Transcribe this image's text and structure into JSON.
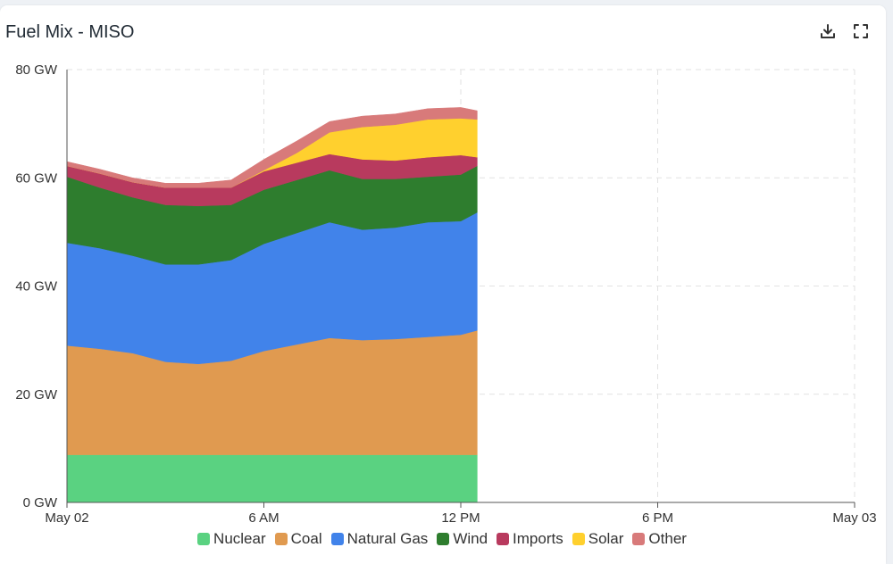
{
  "header": {
    "title": "Fuel Mix - MISO",
    "download_icon": "download-icon",
    "fullscreen_icon": "fullscreen-icon"
  },
  "chart_data": {
    "type": "area",
    "stacked": true,
    "title": "Fuel Mix - MISO",
    "xlabel": "",
    "ylabel": "",
    "x_unit": "hours after May 02 00:00",
    "xlim": [
      0,
      24
    ],
    "ylim": [
      0,
      80
    ],
    "y_ticks": [
      "0 GW",
      "20 GW",
      "40 GW",
      "60 GW",
      "80 GW"
    ],
    "x_ticks": [
      "May 02",
      "6 AM",
      "12 PM",
      "6 PM",
      "May 03"
    ],
    "grid": true,
    "legend_position": "bottom",
    "x": [
      0,
      1,
      2,
      3,
      4,
      5,
      6,
      7,
      8,
      9,
      10,
      11,
      12,
      12.5
    ],
    "series": [
      {
        "name": "Nuclear",
        "color": "#5ad281",
        "values": [
          8.8,
          8.8,
          8.8,
          8.8,
          8.8,
          8.8,
          8.8,
          8.8,
          8.8,
          8.8,
          8.8,
          8.8,
          8.8,
          8.8
        ]
      },
      {
        "name": "Coal",
        "color": "#e09a50",
        "values": [
          20.2,
          19.6,
          18.8,
          17.2,
          16.8,
          17.4,
          19.2,
          20.4,
          21.6,
          21.2,
          21.4,
          21.8,
          22.2,
          23.0
        ]
      },
      {
        "name": "Natural Gas",
        "color": "#4183ea",
        "values": [
          19.0,
          18.6,
          18.0,
          18.0,
          18.4,
          18.6,
          19.8,
          20.6,
          21.4,
          20.4,
          20.6,
          21.2,
          21.0,
          21.8
        ]
      },
      {
        "name": "Wind",
        "color": "#2e7d2e",
        "values": [
          12.2,
          11.2,
          10.8,
          11.0,
          10.8,
          10.2,
          10.0,
          9.8,
          9.6,
          9.4,
          9.0,
          8.4,
          8.6,
          8.6
        ]
      },
      {
        "name": "Imports",
        "color": "#b83a5e",
        "values": [
          2.0,
          2.6,
          2.8,
          3.2,
          3.4,
          3.2,
          3.4,
          3.2,
          3.0,
          3.6,
          3.4,
          3.6,
          3.6,
          1.6
        ]
      },
      {
        "name": "Solar",
        "color": "#ffd02e",
        "values": [
          0,
          0,
          0,
          0,
          0,
          0,
          0.2,
          1.8,
          4.0,
          6.0,
          6.6,
          7.0,
          6.8,
          7.0
        ]
      },
      {
        "name": "Other",
        "color": "#d87a7a",
        "values": [
          0.8,
          0.8,
          0.8,
          0.8,
          0.8,
          1.4,
          2.0,
          2.2,
          2.0,
          2.0,
          2.0,
          2.0,
          2.0,
          1.6
        ]
      }
    ]
  }
}
